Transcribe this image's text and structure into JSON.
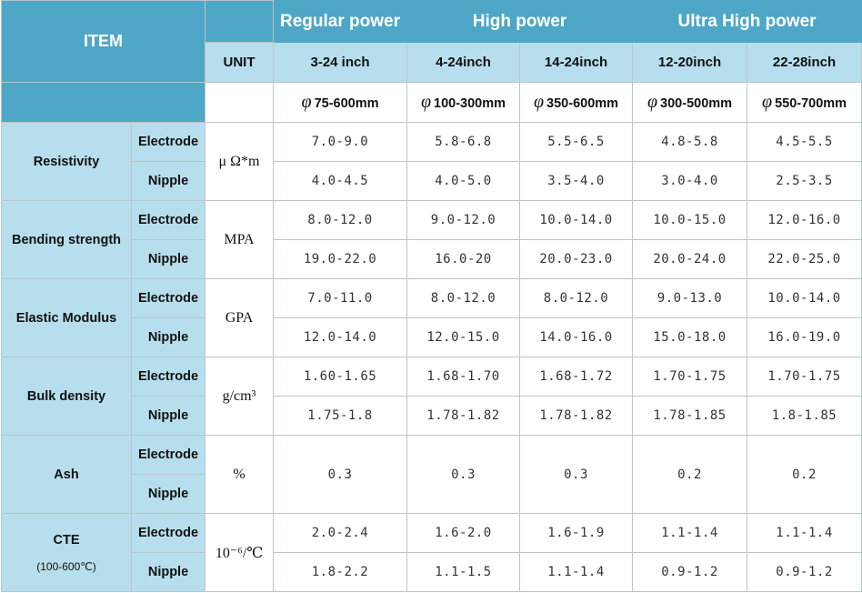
{
  "header": {
    "item": "ITEM",
    "unit": "UNIT",
    "groups": [
      "Regular power",
      "High power",
      "Ultra High power"
    ],
    "sizes": [
      "3-24 inch",
      "4-24inch",
      "14-24inch",
      "12-20inch",
      "22-28inch"
    ],
    "diameter_symbol": "φ",
    "diameters": [
      "75-600mm",
      "100-300mm",
      "350-600mm",
      "300-500mm",
      "550-700mm"
    ]
  },
  "rows": [
    {
      "item": "Resistivity",
      "unit": "μ Ω*m",
      "electrode_label": "Electrode",
      "nipple_label": "Nipple",
      "electrode": [
        "7.0-9.0",
        "5.8-6.8",
        "5.5-6.5",
        "4.8-5.8",
        "4.5-5.5"
      ],
      "nipple": [
        "4.0-4.5",
        "4.0-5.0",
        "3.5-4.0",
        "3.0-4.0",
        "2.5-3.5"
      ]
    },
    {
      "item": "Bending strength",
      "unit": "MPA",
      "electrode_label": "Electrode",
      "nipple_label": "Nipple",
      "electrode": [
        "8.0-12.0",
        "9.0-12.0",
        "10.0-14.0",
        "10.0-15.0",
        "12.0-16.0"
      ],
      "nipple": [
        "19.0-22.0",
        "16.0-20",
        "20.0-23.0",
        "20.0-24.0",
        "22.0-25.0"
      ]
    },
    {
      "item": "Elastic Modulus",
      "unit": "GPA",
      "electrode_label": "Electrode",
      "nipple_label": "Nipple",
      "electrode": [
        "7.0-11.0",
        "8.0-12.0",
        "8.0-12.0",
        "9.0-13.0",
        "10.0-14.0"
      ],
      "nipple": [
        "12.0-14.0",
        "12.0-15.0",
        "14.0-16.0",
        "15.0-18.0",
        "16.0-19.0"
      ]
    },
    {
      "item": "Bulk density",
      "unit": "g/cm³",
      "electrode_label": "Electrode",
      "nipple_label": "Nipple",
      "electrode": [
        "1.60-1.65",
        "1.68-1.70",
        "1.68-1.72",
        "1.70-1.75",
        "1.70-1.75"
      ],
      "nipple": [
        "1.75-1.8",
        "1.78-1.82",
        "1.78-1.82",
        "1.78-1.85",
        "1.8-1.85"
      ]
    },
    {
      "item": "Ash",
      "unit": "%",
      "electrode_label": "Electrode",
      "nipple_label": "Nipple",
      "shared": [
        "0.3",
        "0.3",
        "0.3",
        "0.2",
        "0.2"
      ]
    },
    {
      "item": "CTE",
      "item_note": "(100-600℃)",
      "unit": "10⁻⁶/℃",
      "electrode_label": "Electrode",
      "nipple_label": "Nipple",
      "electrode": [
        "2.0-2.4",
        "1.6-2.0",
        "1.6-1.9",
        "1.1-1.4",
        "1.1-1.4"
      ],
      "nipple": [
        "1.8-2.2",
        "1.1-1.5",
        "1.1-1.4",
        "0.9-1.2",
        "0.9-1.2"
      ]
    }
  ]
}
